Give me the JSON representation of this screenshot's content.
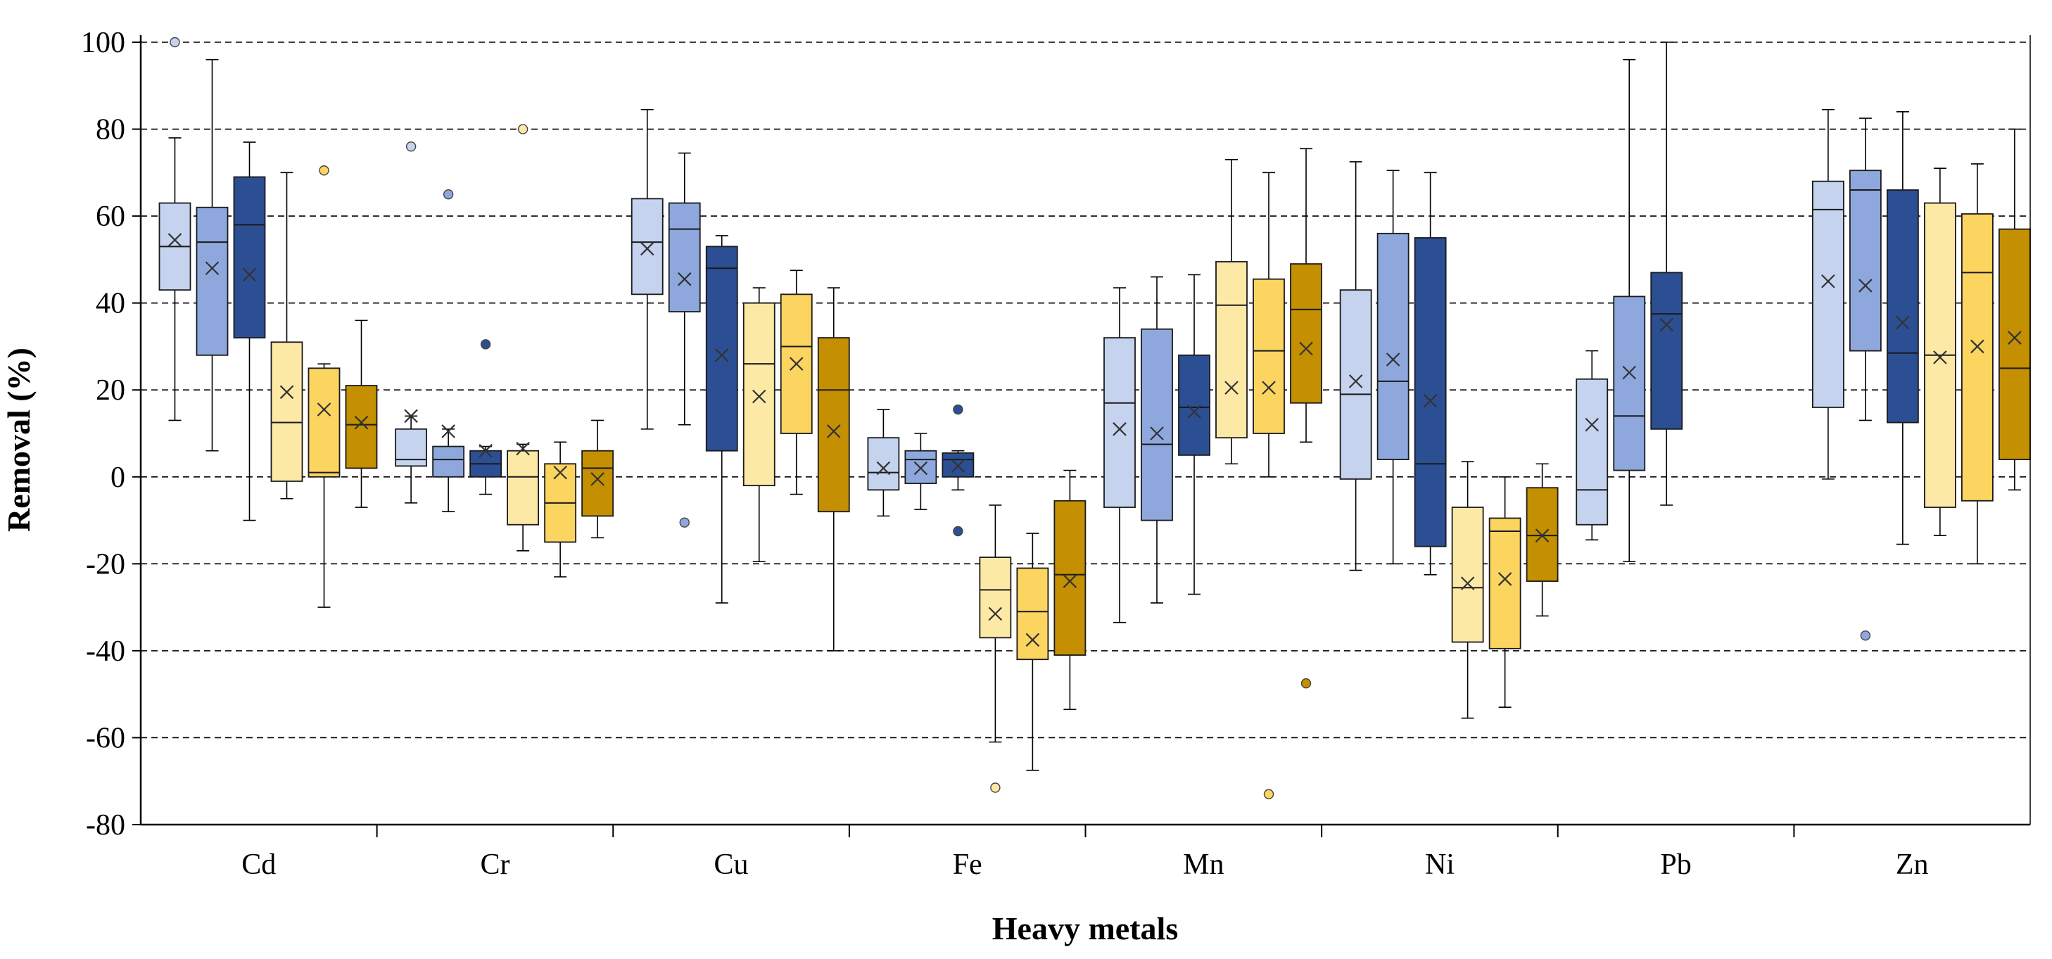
{
  "chart_data": {
    "type": "box",
    "xlabel": "Heavy metals",
    "ylabel": "Removal (%)",
    "ylim": [
      -80,
      100
    ],
    "yticks": [
      -80,
      -60,
      -40,
      -20,
      0,
      20,
      40,
      60,
      80,
      100
    ],
    "grid": "horizontal-dashed",
    "categories": [
      "Cd",
      "Cr",
      "Cu",
      "Fe",
      "Mn",
      "Ni",
      "Pb",
      "Zn"
    ],
    "series_colors": [
      "#c5d3ef",
      "#8ea8dd",
      "#2c4f94",
      "#fde9a6",
      "#fcd460",
      "#c48f00"
    ],
    "groups": [
      {
        "category": "Cd",
        "boxes": [
          {
            "min": 13,
            "q1": 43,
            "median": 53,
            "q3": 63,
            "max": 78,
            "mean": 54.5,
            "outliers": [
              100
            ]
          },
          {
            "min": 6,
            "q1": 28,
            "median": 54,
            "q3": 62,
            "max": 96,
            "mean": 48,
            "outliers": []
          },
          {
            "min": -10,
            "q1": 32,
            "median": 58,
            "q3": 69,
            "max": 77,
            "mean": 46.5,
            "outliers": []
          },
          {
            "min": -5,
            "q1": -1,
            "median": 12.5,
            "q3": 31,
            "max": 70,
            "mean": 19.5,
            "outliers": []
          },
          {
            "min": -30,
            "q1": 0,
            "median": 1,
            "q3": 25,
            "max": 26,
            "mean": 15.5,
            "outliers": [
              70.5
            ]
          },
          {
            "min": -7,
            "q1": 2,
            "median": 12,
            "q3": 21,
            "max": 36,
            "mean": 12.5,
            "outliers": []
          }
        ]
      },
      {
        "category": "Cr",
        "boxes": [
          {
            "min": -6,
            "q1": 2.5,
            "median": 4,
            "q3": 11,
            "max": 14,
            "mean": 14,
            "outliers": [
              76
            ]
          },
          {
            "min": -8,
            "q1": 0,
            "median": 4,
            "q3": 7,
            "max": 11,
            "mean": 10.5,
            "outliers": [
              65
            ]
          },
          {
            "min": -4,
            "q1": 0,
            "median": 3,
            "q3": 6,
            "max": 7,
            "mean": 6,
            "outliers": [
              30.5
            ]
          },
          {
            "min": -17,
            "q1": -11,
            "median": 0,
            "q3": 6,
            "max": 7.5,
            "mean": 6.5,
            "outliers": [
              80
            ]
          },
          {
            "min": -23,
            "q1": -15,
            "median": -6,
            "q3": 3,
            "max": 8,
            "mean": 1,
            "outliers": []
          },
          {
            "min": -14,
            "q1": -9,
            "median": 2,
            "q3": 6,
            "max": 13,
            "mean": -0.5,
            "outliers": []
          }
        ]
      },
      {
        "category": "Cu",
        "boxes": [
          {
            "min": 11,
            "q1": 42,
            "median": 54,
            "q3": 64,
            "max": 84.5,
            "mean": 52.5,
            "outliers": []
          },
          {
            "min": 12,
            "q1": 38,
            "median": 57,
            "q3": 63,
            "max": 74.5,
            "mean": 45.5,
            "outliers": [
              -10.5
            ]
          },
          {
            "min": -29,
            "q1": 6,
            "median": 48,
            "q3": 53,
            "max": 55.5,
            "mean": 28,
            "outliers": []
          },
          {
            "min": -19.5,
            "q1": -2,
            "median": 26,
            "q3": 40,
            "max": 43.5,
            "mean": 18.5,
            "outliers": []
          },
          {
            "min": -4,
            "q1": 10,
            "median": 30,
            "q3": 42,
            "max": 47.5,
            "mean": 26,
            "outliers": []
          },
          {
            "min": -40,
            "q1": -8,
            "median": 20,
            "q3": 32,
            "max": 43.5,
            "mean": 10.5,
            "outliers": []
          }
        ]
      },
      {
        "category": "Fe",
        "boxes": [
          {
            "min": -9,
            "q1": -3,
            "median": 1,
            "q3": 9,
            "max": 15.5,
            "mean": 2,
            "outliers": []
          },
          {
            "min": -7.5,
            "q1": -1.5,
            "median": 4,
            "q3": 6,
            "max": 10,
            "mean": 2,
            "outliers": []
          },
          {
            "min": -3,
            "q1": 0,
            "median": 4,
            "q3": 5.5,
            "max": 6,
            "mean": 2.5,
            "outliers": [
              15.5,
              -12.5
            ]
          },
          {
            "min": -61,
            "q1": -37,
            "median": -26,
            "q3": -18.5,
            "max": -6.5,
            "mean": -31.5,
            "outliers": [
              -71.5
            ]
          },
          {
            "min": -67.5,
            "q1": -42,
            "median": -31,
            "q3": -21,
            "max": -13,
            "mean": -37.5,
            "outliers": []
          },
          {
            "min": -53.5,
            "q1": -41,
            "median": -22.5,
            "q3": -5.5,
            "max": 1.5,
            "mean": -24,
            "outliers": []
          }
        ]
      },
      {
        "category": "Mn",
        "boxes": [
          {
            "min": -33.5,
            "q1": -7,
            "median": 17,
            "q3": 32,
            "max": 43.5,
            "mean": 11,
            "outliers": []
          },
          {
            "min": -29,
            "q1": -10,
            "median": 7.5,
            "q3": 34,
            "max": 46,
            "mean": 10,
            "outliers": []
          },
          {
            "min": -27,
            "q1": 5,
            "median": 16,
            "q3": 28,
            "max": 46.5,
            "mean": 15,
            "outliers": []
          },
          {
            "min": 3,
            "q1": 9,
            "median": 39.5,
            "q3": 49.5,
            "max": 73,
            "mean": 20.5,
            "outliers": []
          },
          {
            "min": 0,
            "q1": 10,
            "median": 29,
            "q3": 45.5,
            "max": 70,
            "mean": 20.5,
            "outliers": [
              -73
            ]
          },
          {
            "min": 8,
            "q1": 17,
            "median": 38.5,
            "q3": 49,
            "max": 75.5,
            "mean": 29.5,
            "outliers": [
              -47.5
            ]
          }
        ]
      },
      {
        "category": "Ni",
        "boxes": [
          {
            "min": -21.5,
            "q1": -0.5,
            "median": 19,
            "q3": 43,
            "max": 72.5,
            "mean": 22,
            "outliers": []
          },
          {
            "min": -20,
            "q1": 4,
            "median": 22,
            "q3": 56,
            "max": 70.5,
            "mean": 27,
            "outliers": []
          },
          {
            "min": -22.5,
            "q1": -16,
            "median": 3,
            "q3": 55,
            "max": 70,
            "mean": 17.5,
            "outliers": []
          },
          {
            "min": -55.5,
            "q1": -38,
            "median": -25.5,
            "q3": -7,
            "max": 3.5,
            "mean": -24.5,
            "outliers": []
          },
          {
            "min": -53,
            "q1": -39.5,
            "median": -12.5,
            "q3": -9.5,
            "max": 0,
            "mean": -23.5,
            "outliers": []
          },
          {
            "min": -32,
            "q1": -24,
            "median": -13.5,
            "q3": -2.5,
            "max": 3,
            "mean": -13.5,
            "outliers": []
          }
        ]
      },
      {
        "category": "Pb",
        "boxes": [
          {
            "min": -14.5,
            "q1": -11,
            "median": -3,
            "q3": 22.5,
            "max": 29,
            "mean": 12,
            "outliers": []
          },
          {
            "min": -19.5,
            "q1": 1.5,
            "median": 14,
            "q3": 41.5,
            "max": 96,
            "mean": 24,
            "outliers": []
          },
          {
            "min": -6.5,
            "q1": 11,
            "median": 37.5,
            "q3": 47,
            "max": 100,
            "mean": 35,
            "outliers": []
          }
        ]
      },
      {
        "category": "Zn",
        "boxes": [
          {
            "min": -0.5,
            "q1": 16,
            "median": 61.5,
            "q3": 68,
            "max": 84.5,
            "mean": 45,
            "outliers": []
          },
          {
            "min": 13,
            "q1": 29,
            "median": 66,
            "q3": 70.5,
            "max": 82.5,
            "mean": 44,
            "outliers": [
              -36.5
            ]
          },
          {
            "min": -15.5,
            "q1": 12.5,
            "median": 28.5,
            "q3": 66,
            "max": 84,
            "mean": 35.5,
            "outliers": []
          },
          {
            "min": -13.5,
            "q1": -7,
            "median": 28,
            "q3": 63,
            "max": 71,
            "mean": 27.5,
            "outliers": []
          },
          {
            "min": -20,
            "q1": -5.5,
            "median": 47,
            "q3": 60.5,
            "max": 72,
            "mean": 30,
            "outliers": []
          },
          {
            "min": -3,
            "q1": 4,
            "median": 25,
            "q3": 57,
            "max": 80,
            "mean": 32,
            "outliers": []
          }
        ]
      }
    ]
  }
}
